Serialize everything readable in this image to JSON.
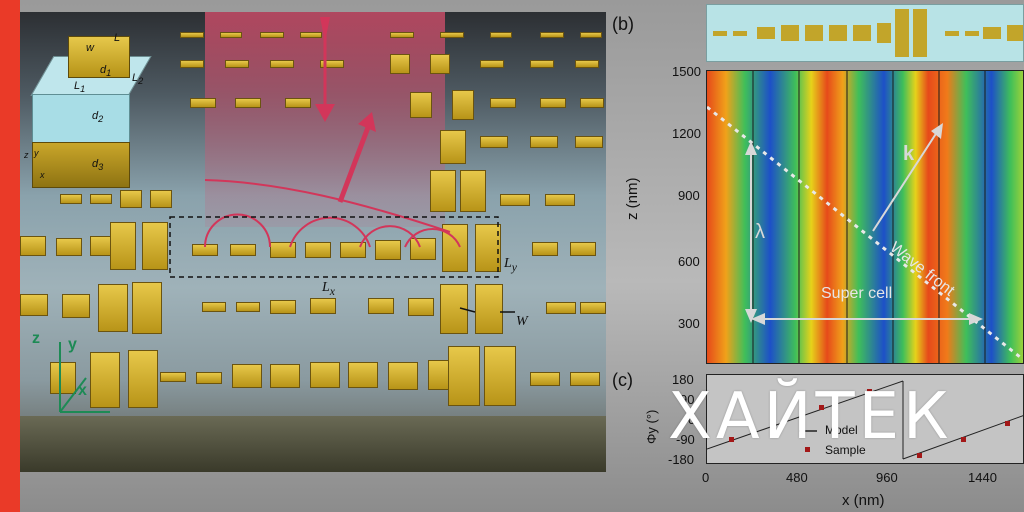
{
  "panel_a": {
    "inset_labels": {
      "w": "w",
      "L": "L",
      "d1": "d",
      "d1_sub": "1",
      "L1": "L",
      "L1_sub": "1",
      "L2": "L",
      "L2_sub": "2",
      "d2": "d",
      "d2_sub": "2",
      "d3": "d",
      "d3_sub": "3",
      "y": "y",
      "x": "x",
      "z": "z"
    },
    "labels": {
      "Ly": "L",
      "Ly_sub": "y",
      "Lx": "L",
      "Lx_sub": "x",
      "W": "W"
    },
    "axes": {
      "z": "z",
      "y": "y",
      "x": "x"
    }
  },
  "panel_b": {
    "label": "(b)",
    "y_axis_title": "z (nm)",
    "y_ticks": [
      "1500",
      "1200",
      "900",
      "600",
      "300"
    ],
    "annotations": {
      "lambda": "λ",
      "k": "k",
      "wave_front": "Wave front",
      "super_cell": "Super cell"
    }
  },
  "panel_c": {
    "label": "(c)",
    "y_axis_title": "Φy (°)",
    "y_ticks": [
      "180",
      "90",
      "0",
      "-90",
      "-180"
    ],
    "x_ticks": [
      "0",
      "480",
      "960",
      "1440"
    ],
    "x_axis_title": "x (nm)",
    "legend": {
      "model": "Model",
      "sample": "Sample"
    }
  },
  "overlay": {
    "title": "ХАЙТЕК",
    "color": "#ffffff"
  },
  "colors": {
    "accent_red": "#ea3a28",
    "gold": "#d6b436"
  }
}
